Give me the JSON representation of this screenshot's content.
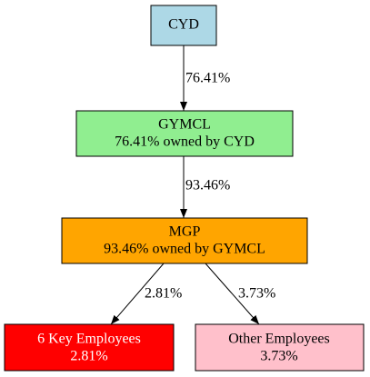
{
  "nodes": [
    {
      "id": "CYD",
      "lines": [
        "CYD"
      ]
    },
    {
      "id": "GYMCL",
      "lines": [
        "GYMCL",
        "76.41% owned by CYD"
      ]
    },
    {
      "id": "MGP",
      "lines": [
        "MGP",
        "93.46% owned by GYMCL"
      ]
    },
    {
      "id": "KEY",
      "lines": [
        "6 Key Employees",
        "2.81%"
      ]
    },
    {
      "id": "OTHER",
      "lines": [
        "Other Employees",
        "3.73%"
      ]
    }
  ],
  "edges": [
    {
      "from": "CYD",
      "to": "GYMCL",
      "label": "76.41%"
    },
    {
      "from": "GYMCL",
      "to": "MGP",
      "label": "93.46%"
    },
    {
      "from": "MGP",
      "to": "KEY",
      "label": "2.81%"
    },
    {
      "from": "MGP",
      "to": "OTHER",
      "label": "3.73%"
    }
  ]
}
